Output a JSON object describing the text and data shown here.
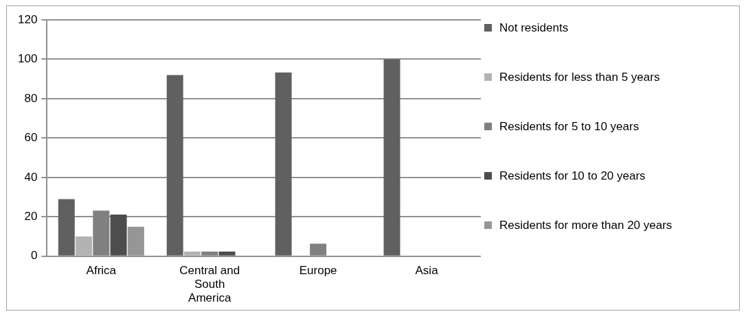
{
  "chart_data": {
    "type": "bar",
    "categories": [
      "Africa",
      "Central and South America",
      "Europe",
      "Asia"
    ],
    "series": [
      {
        "name": "Not residents",
        "color": "#606060",
        "values": [
          29,
          92,
          93.3,
          100
        ]
      },
      {
        "name": "Residents for less than 5 years",
        "color": "#b3b3b3",
        "values": [
          10,
          2.4,
          0,
          0
        ]
      },
      {
        "name": "Residents for 5 to 10 years",
        "color": "#808080",
        "values": [
          23.2,
          2.4,
          6.4,
          0
        ]
      },
      {
        "name": "Residents for 10 to 20 years",
        "color": "#4d4d4d",
        "values": [
          21.2,
          2.4,
          0,
          0
        ]
      },
      {
        "name": "Residents for more than 20 years",
        "color": "#969696",
        "values": [
          15,
          0,
          0,
          0
        ]
      }
    ],
    "ylim": [
      0,
      120
    ],
    "yticks": [
      0,
      20,
      40,
      60,
      80,
      100,
      120
    ],
    "grid": "y",
    "legend": "right"
  }
}
